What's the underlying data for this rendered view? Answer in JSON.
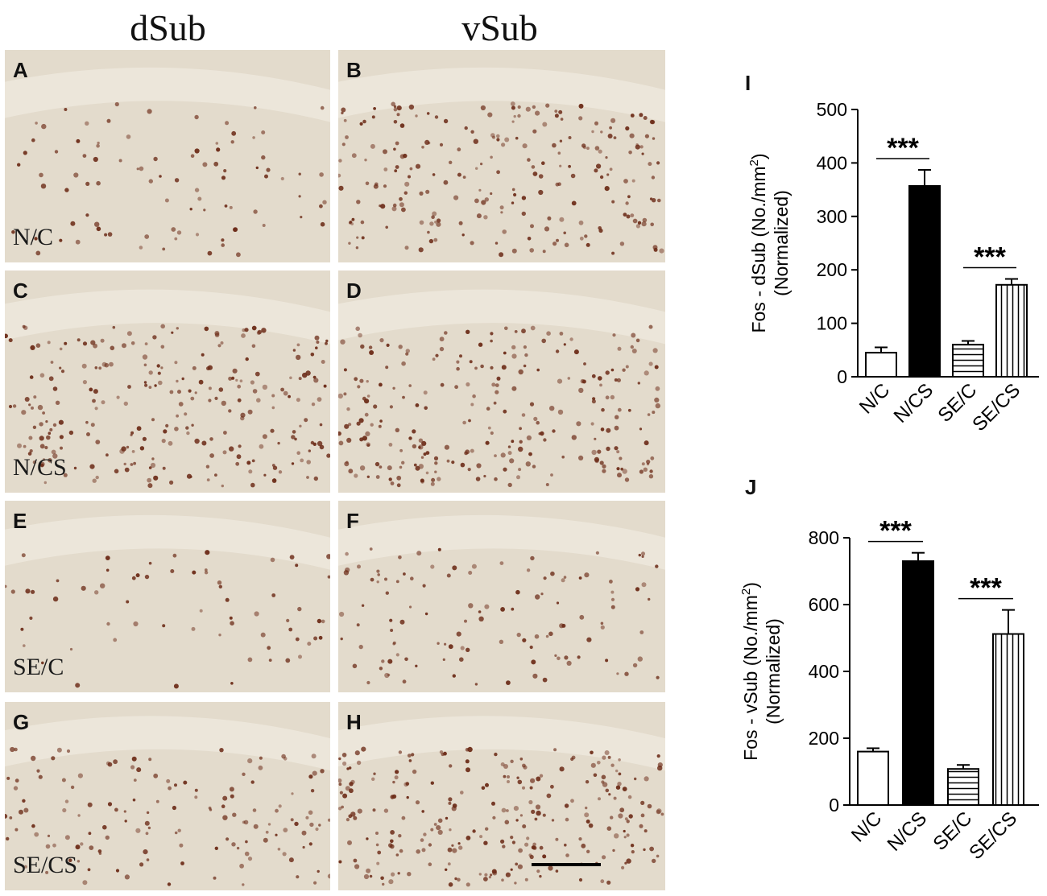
{
  "column_titles": {
    "left": "dSub",
    "right": "vSub"
  },
  "panels": [
    {
      "label": "A",
      "condition": "N/C",
      "density": 0.35
    },
    {
      "label": "B",
      "condition": "",
      "density": 0.9
    },
    {
      "label": "C",
      "condition": "N/CS",
      "density": 1.0
    },
    {
      "label": "D",
      "condition": "",
      "density": 1.0
    },
    {
      "label": "E",
      "condition": "SE/C",
      "density": 0.25
    },
    {
      "label": "F",
      "condition": "",
      "density": 0.45
    },
    {
      "label": "G",
      "condition": "SE/CS",
      "density": 0.55
    },
    {
      "label": "H",
      "condition": "",
      "density": 1.0
    }
  ],
  "colors": {
    "tissue": "#e3dbcc",
    "cell": "#6b2a16",
    "bar_dark": "#000000"
  },
  "chart_data": [
    {
      "panel_label": "I",
      "type": "bar",
      "categories": [
        "N/C",
        "N/CS",
        "SE/C",
        "SE/CS"
      ],
      "values": [
        45,
        357,
        60,
        172
      ],
      "errors": [
        10,
        30,
        7,
        11
      ],
      "fills": [
        "white",
        "black",
        "hlines",
        "vlines"
      ],
      "ylabel_line1": "Fos - dSub (No./mm",
      "ylabel_sup": "2",
      "ylabel_close": ")",
      "ylabel_line2": "(Normalized)",
      "ylim": [
        0,
        500
      ],
      "yticks": [
        0,
        100,
        200,
        300,
        400,
        500
      ],
      "significance": [
        {
          "pair": [
            0,
            1
          ],
          "text": "***"
        },
        {
          "pair": [
            2,
            3
          ],
          "text": "***"
        }
      ]
    },
    {
      "panel_label": "J",
      "type": "bar",
      "categories": [
        "N/C",
        "N/CS",
        "SE/C",
        "SE/CS"
      ],
      "values": [
        160,
        730,
        108,
        512
      ],
      "errors": [
        10,
        25,
        12,
        72
      ],
      "fills": [
        "white",
        "black",
        "hlines",
        "vlines"
      ],
      "ylabel_line1": "Fos - vSub (No./mm",
      "ylabel_sup": "2",
      "ylabel_close": ")",
      "ylabel_line2": "(Normalized)",
      "ylim": [
        0,
        800
      ],
      "yticks": [
        0,
        200,
        400,
        600,
        800
      ],
      "significance": [
        {
          "pair": [
            0,
            1
          ],
          "text": "***"
        },
        {
          "pair": [
            2,
            3
          ],
          "text": "***"
        }
      ]
    }
  ]
}
